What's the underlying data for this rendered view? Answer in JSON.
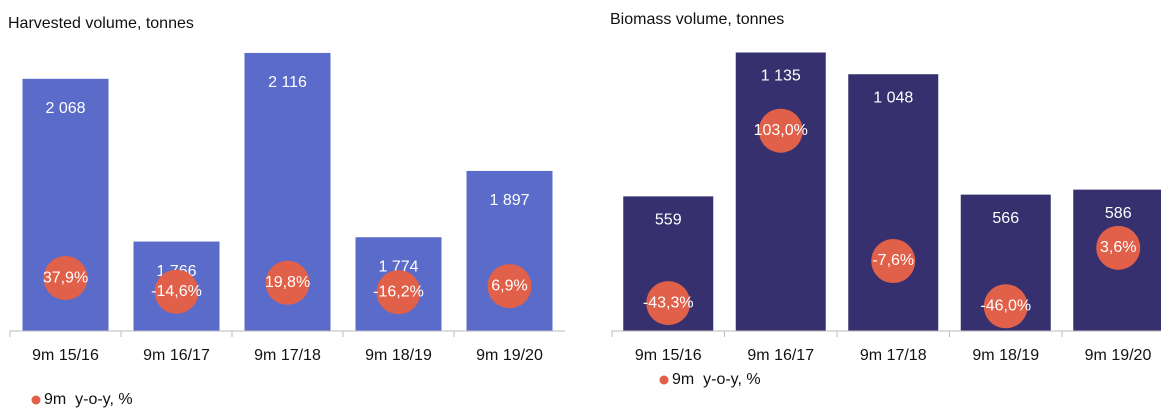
{
  "chart_data": [
    {
      "type": "bar",
      "title": "Harvested volume, tonnes",
      "categories": [
        "9m 15/16",
        "9m 16/17",
        "9m 17/18",
        "9m 18/19",
        "9m 19/20"
      ],
      "ylim": [
        1600,
        2140
      ],
      "y2lim": [
        -165,
        950
      ],
      "series": [
        {
          "color": "#5b6bc9",
          "values": [
            2068,
            1766,
            2116,
            1774,
            1897
          ],
          "value_labels": [
            "2 068",
            "1 766",
            "2 116",
            "1 774",
            "1 897"
          ]
        },
        {
          "name": "9m  y-o-y, %",
          "color": "#e0604a",
          "axis": "y2",
          "values": [
            37.9,
            -14.6,
            19.8,
            -16.2,
            6.9
          ],
          "value_labels": [
            "37,9%",
            "-14,6%",
            "19,8%",
            "-16,2%",
            "6,9%"
          ]
        }
      ]
    },
    {
      "type": "bar",
      "title": "Biomass volume, tonnes",
      "categories": [
        "9m 15/16",
        "9m 16/17",
        "9m 17/18",
        "9m 18/19",
        "9m 19/20"
      ],
      "ylim": [
        20,
        1185
      ],
      "y2lim": [
        -67,
        180
      ],
      "series": [
        {
          "color": "#36306e",
          "values": [
            559,
            1135,
            1048,
            566,
            586
          ],
          "value_labels": [
            "559",
            "1 135",
            "1 048",
            "566",
            "586"
          ]
        },
        {
          "name": "9m  y-o-y, %",
          "color": "#e0604a",
          "axis": "y2",
          "values": [
            -43.3,
            103.0,
            -7.6,
            -46.0,
            3.6
          ],
          "value_labels": [
            "-43,3%",
            "103,0%",
            "-7,6%",
            "-46,0%",
            "3,6%"
          ]
        }
      ]
    }
  ]
}
